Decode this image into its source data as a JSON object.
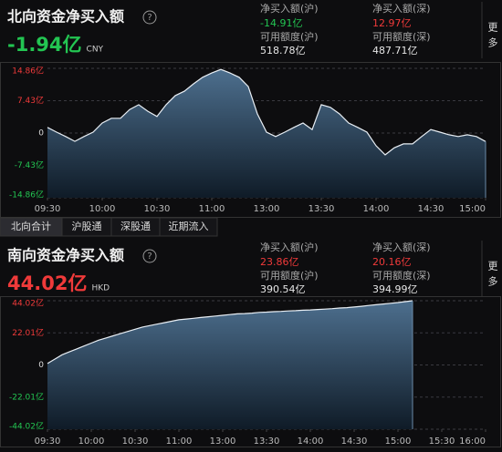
{
  "tabs": [
    "北向合计",
    "沪股通",
    "深股通",
    "近期流入"
  ],
  "chart_data": [
    {
      "type": "area",
      "title": "北向资金净买入额",
      "net": "-1.94亿",
      "net_color": "#23c552",
      "currency": "CNY",
      "more": "更多",
      "stats": [
        {
          "label": "净买入额(沪)",
          "value": "-14.91亿",
          "color": "#23c552"
        },
        {
          "label": "净买入额(深)",
          "value": "12.97亿",
          "color": "#f03a3a"
        },
        {
          "label": "可用额度(沪)",
          "value": "518.78亿",
          "color": "#e6e6e6"
        },
        {
          "label": "可用额度(深)",
          "value": "487.71亿",
          "color": "#e6e6e6"
        }
      ],
      "x": [
        "09:30",
        "09:35",
        "09:40",
        "09:45",
        "09:50",
        "09:55",
        "10:00",
        "10:05",
        "10:10",
        "10:15",
        "10:20",
        "10:25",
        "10:30",
        "10:35",
        "10:40",
        "10:45",
        "10:50",
        "10:55",
        "11:00",
        "11:05",
        "11:10",
        "11:15",
        "11:20",
        "11:25",
        "13:00",
        "13:05",
        "13:10",
        "13:15",
        "13:20",
        "13:25",
        "13:30",
        "13:35",
        "13:40",
        "13:45",
        "13:50",
        "13:55",
        "14:00",
        "14:05",
        "14:10",
        "14:15",
        "14:20",
        "14:25",
        "14:30",
        "14:35",
        "14:40",
        "14:45",
        "14:50",
        "14:55",
        "15:00"
      ],
      "values": [
        1.3,
        0.2,
        -0.8,
        -1.9,
        -0.8,
        0.2,
        2.3,
        3.4,
        3.4,
        5.4,
        6.5,
        5.0,
        3.8,
        6.5,
        8.6,
        9.6,
        11.3,
        12.8,
        13.8,
        14.6,
        13.8,
        12.8,
        10.7,
        4.4,
        0.2,
        -0.8,
        0.2,
        1.3,
        2.3,
        0.8,
        6.5,
        5.9,
        4.4,
        2.3,
        1.3,
        0.2,
        -2.9,
        -5.0,
        -3.4,
        -2.5,
        -2.5,
        -0.8,
        0.8,
        0.2,
        -0.4,
        -0.8,
        -0.4,
        -0.8,
        -1.94
      ],
      "xticks": [
        "09:30",
        "10:00",
        "10:30",
        "11:00",
        "13:00",
        "13:30",
        "14:00",
        "14:30",
        "15:00"
      ],
      "ylim": [
        -14.86,
        14.86
      ],
      "yticks": [
        {
          "value": 14.86,
          "label": "14.86亿"
        },
        {
          "value": 7.43,
          "label": "7.43亿"
        },
        0,
        {
          "value": -7.43,
          "label": "-7.43亿"
        },
        {
          "value": -14.86,
          "label": "-14.86亿"
        }
      ],
      "grid": true,
      "color": "#e8eef4"
    },
    {
      "type": "area",
      "title": "南向资金净买入额",
      "net": "44.02亿",
      "net_color": "#f03a3a",
      "currency": "HKD",
      "more": "更多",
      "stats": [
        {
          "label": "净买入额(沪)",
          "value": "23.86亿",
          "color": "#f03a3a"
        },
        {
          "label": "净买入额(深)",
          "value": "20.16亿",
          "color": "#f03a3a"
        },
        {
          "label": "可用额度(沪)",
          "value": "390.54亿",
          "color": "#e6e6e6"
        },
        {
          "label": "可用额度(深)",
          "value": "394.99亿",
          "color": "#e6e6e6"
        }
      ],
      "x": [
        "09:30",
        "09:35",
        "09:40",
        "09:45",
        "09:50",
        "09:55",
        "10:00",
        "10:05",
        "10:10",
        "10:15",
        "10:20",
        "10:25",
        "10:30",
        "10:35",
        "10:40",
        "10:45",
        "10:50",
        "10:55",
        "11:00",
        "11:05",
        "11:10",
        "11:15",
        "11:20",
        "11:25",
        "13:00",
        "13:05",
        "13:10",
        "13:15",
        "13:20",
        "13:25",
        "13:30",
        "13:35",
        "13:40",
        "13:45",
        "13:50",
        "13:55",
        "14:00",
        "14:05",
        "14:10",
        "14:15",
        "14:20",
        "14:25",
        "14:30",
        "14:35",
        "14:40",
        "14:45",
        "14:50",
        "14:55",
        "15:00",
        "15:05",
        "15:10",
        "15:15",
        "15:20",
        "15:25",
        "15:30",
        "15:35",
        "15:40",
        "15:45",
        "15:50",
        "15:55",
        "16:00"
      ],
      "values": [
        1,
        4,
        7,
        9,
        11,
        13,
        15,
        17,
        18.5,
        20,
        21.5,
        23,
        24.5,
        26,
        27,
        28,
        29,
        30,
        31,
        31.5,
        32,
        32.5,
        33,
        33.5,
        34,
        34.5,
        35,
        35.2,
        35.5,
        36,
        36.2,
        36.5,
        36.7,
        37,
        37.2,
        37.5,
        37.7,
        38,
        38.3,
        38.6,
        39,
        39.3,
        39.7,
        40.2,
        40.8,
        41.3,
        41.8,
        42.3,
        42.8,
        43.4,
        44.02,
        null,
        null,
        null,
        null,
        null,
        null,
        null,
        null,
        null,
        null
      ],
      "xticks": [
        "09:30",
        "10:00",
        "10:30",
        "11:00",
        "13:00",
        "13:30",
        "14:00",
        "14:30",
        "15:00",
        "15:30",
        "16:00"
      ],
      "ylim": [
        -44.02,
        44.02
      ],
      "yticks": [
        {
          "value": 44.02,
          "label": "44.02亿"
        },
        {
          "value": 22.01,
          "label": "22.01亿"
        },
        0,
        {
          "value": -22.01,
          "label": "-22.01亿"
        },
        {
          "value": -44.02,
          "label": "-44.02亿"
        }
      ],
      "grid": true,
      "color": "#e8eef4"
    }
  ]
}
